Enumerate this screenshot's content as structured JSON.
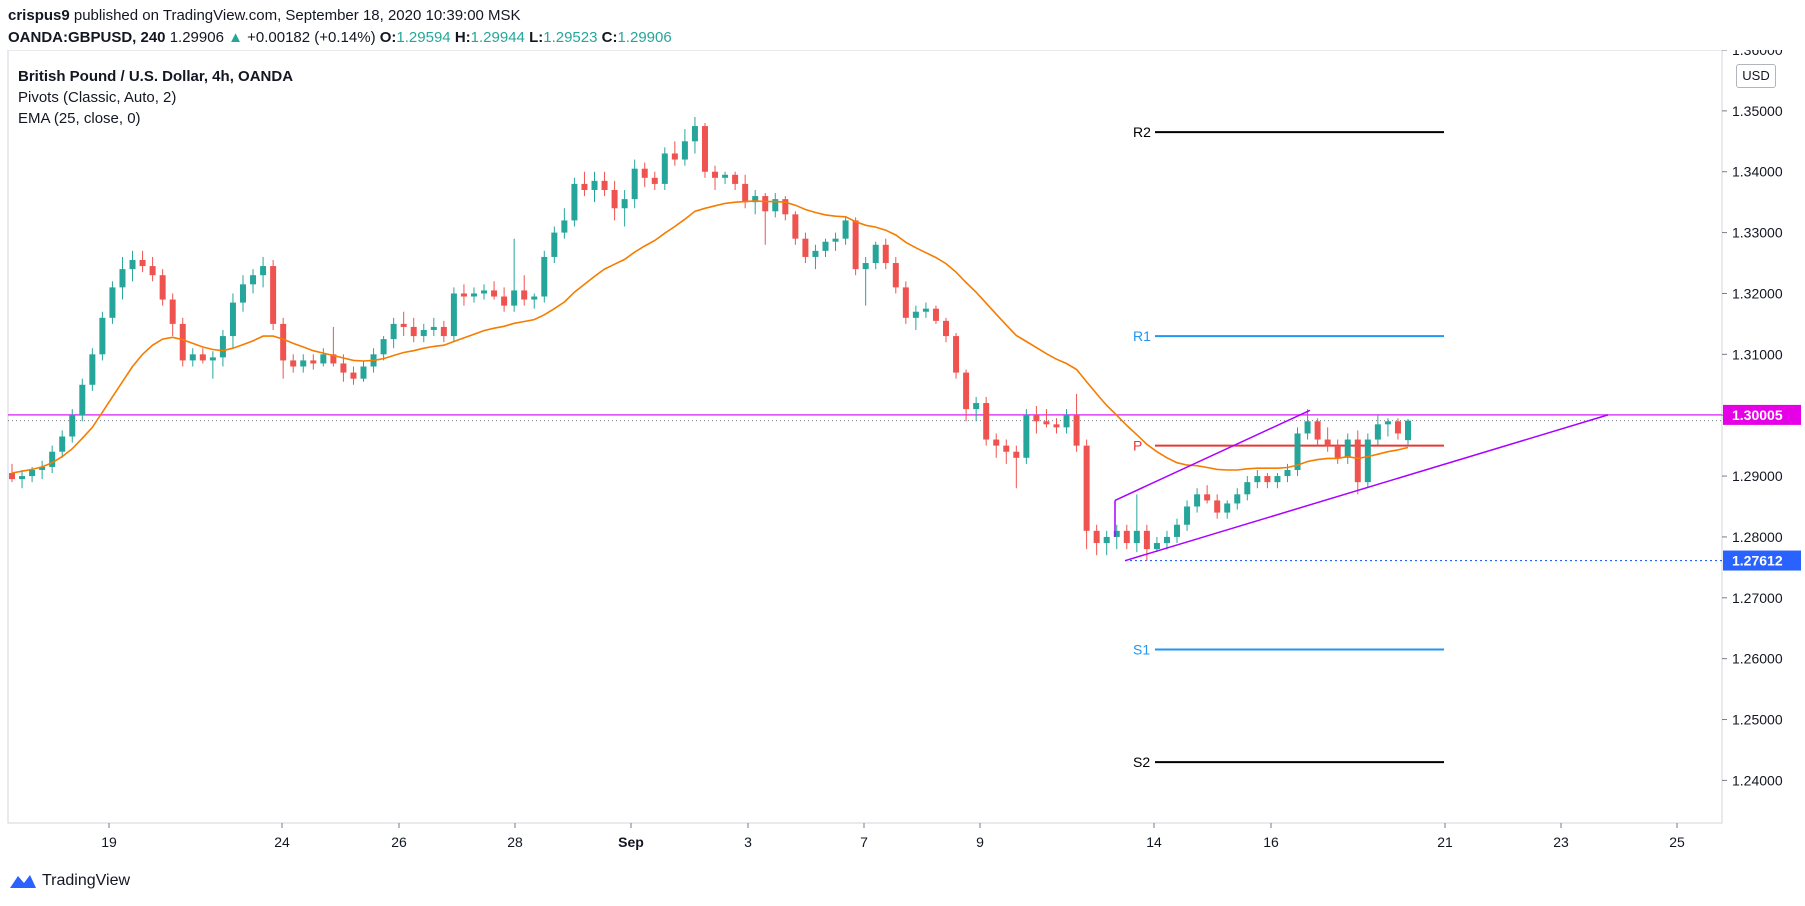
{
  "header": {
    "author": "crispus9",
    "published": "published on TradingView.com, September 18, 2020 10:39:00 MSK"
  },
  "symbol_line": {
    "symbol": "OANDA:GBPUSD, 240",
    "last": "1.29906",
    "arrow": "▲",
    "change": "+0.00182 (+0.14%)",
    "o_label": "O:",
    "o": "1.29594",
    "h_label": "H:",
    "h": "1.29944",
    "l_label": "L:",
    "l": "1.29523",
    "c_label": "C:",
    "c": "1.29906"
  },
  "legend": {
    "title": "British Pound / U.S. Dollar, 4h, OANDA",
    "pivots": "Pivots (Classic, Auto, 2)",
    "ema": "EMA (25, close, 0)"
  },
  "currency_button": "USD",
  "footer": {
    "brand": "TradingView"
  },
  "colors": {
    "up": "#26a69a",
    "down": "#ef5350",
    "ema": "#f57c00",
    "pivot_p": "#e53935",
    "pivot_r1s1": "#2196f3",
    "pivot_r2s2": "#000000",
    "wedge": "#aa00ff",
    "horizontal": "#e040fb",
    "low_label": "#2962ff"
  },
  "chart_data": {
    "type": "candlestick",
    "y_ticks": [
      "1.36000",
      "1.35000",
      "1.34000",
      "1.33000",
      "1.32000",
      "1.31000",
      "1.30000",
      "1.29000",
      "1.28000",
      "1.27000",
      "1.26000",
      "1.25000",
      "1.24000"
    ],
    "ylim": [
      1.233,
      1.36
    ],
    "x_ticks": [
      "19",
      "24",
      "26",
      "28",
      "Sep",
      "3",
      "7",
      "9",
      "14",
      "16",
      "21",
      "23",
      "25"
    ],
    "price_labels": {
      "horizontal": "1.30005",
      "low": "1.27612"
    },
    "pivots": {
      "R2": 1.3465,
      "R1": 1.313,
      "P": 1.295,
      "S1": 1.2615,
      "S2": 1.243,
      "labels": [
        "R2",
        "R1",
        "P",
        "S1",
        "S2"
      ]
    },
    "candles_ohlc": [
      [
        1.2905,
        1.292,
        1.289,
        1.2895
      ],
      [
        1.2895,
        1.291,
        1.288,
        1.29
      ],
      [
        1.29,
        1.2915,
        1.289,
        1.291
      ],
      [
        1.291,
        1.2925,
        1.2895,
        1.2915
      ],
      [
        1.2915,
        1.295,
        1.2905,
        1.294
      ],
      [
        1.294,
        1.2975,
        1.293,
        1.2965
      ],
      [
        1.2965,
        1.301,
        1.2955,
        1.3
      ],
      [
        1.3,
        1.306,
        1.299,
        1.305
      ],
      [
        1.305,
        1.311,
        1.304,
        1.31
      ],
      [
        1.31,
        1.317,
        1.309,
        1.316
      ],
      [
        1.316,
        1.322,
        1.315,
        1.321
      ],
      [
        1.321,
        1.326,
        1.319,
        1.324
      ],
      [
        1.324,
        1.327,
        1.322,
        1.3255
      ],
      [
        1.3255,
        1.327,
        1.3235,
        1.3245
      ],
      [
        1.3245,
        1.326,
        1.322,
        1.323
      ],
      [
        1.323,
        1.324,
        1.318,
        1.319
      ],
      [
        1.319,
        1.32,
        1.313,
        1.315
      ],
      [
        1.315,
        1.316,
        1.308,
        1.309
      ],
      [
        1.309,
        1.311,
        1.308,
        1.31
      ],
      [
        1.31,
        1.311,
        1.3085,
        1.309
      ],
      [
        1.309,
        1.3105,
        1.306,
        1.3095
      ],
      [
        1.3095,
        1.314,
        1.308,
        1.313
      ],
      [
        1.313,
        1.32,
        1.311,
        1.3185
      ],
      [
        1.3185,
        1.323,
        1.317,
        1.3215
      ],
      [
        1.3215,
        1.324,
        1.32,
        1.323
      ],
      [
        1.323,
        1.326,
        1.321,
        1.3245
      ],
      [
        1.3245,
        1.3255,
        1.314,
        1.315
      ],
      [
        1.315,
        1.316,
        1.306,
        1.309
      ],
      [
        1.309,
        1.31,
        1.307,
        1.308
      ],
      [
        1.308,
        1.31,
        1.307,
        1.309
      ],
      [
        1.309,
        1.31,
        1.3075,
        1.3085
      ],
      [
        1.3085,
        1.311,
        1.308,
        1.31
      ],
      [
        1.31,
        1.3145,
        1.308,
        1.3085
      ],
      [
        1.3085,
        1.31,
        1.3055,
        1.307
      ],
      [
        1.307,
        1.308,
        1.305,
        1.306
      ],
      [
        1.306,
        1.309,
        1.3055,
        1.308
      ],
      [
        1.308,
        1.311,
        1.307,
        1.31
      ],
      [
        1.31,
        1.313,
        1.309,
        1.3125
      ],
      [
        1.3125,
        1.316,
        1.311,
        1.315
      ],
      [
        1.315,
        1.317,
        1.313,
        1.3145
      ],
      [
        1.3145,
        1.316,
        1.312,
        1.313
      ],
      [
        1.313,
        1.315,
        1.312,
        1.314
      ],
      [
        1.314,
        1.316,
        1.313,
        1.3145
      ],
      [
        1.3145,
        1.3155,
        1.312,
        1.313
      ],
      [
        1.313,
        1.321,
        1.312,
        1.32
      ],
      [
        1.32,
        1.3215,
        1.318,
        1.3195
      ],
      [
        1.3195,
        1.321,
        1.3185,
        1.32
      ],
      [
        1.32,
        1.3215,
        1.319,
        1.3205
      ],
      [
        1.3205,
        1.322,
        1.319,
        1.3195
      ],
      [
        1.3195,
        1.321,
        1.317,
        1.318
      ],
      [
        1.318,
        1.329,
        1.317,
        1.3205
      ],
      [
        1.3205,
        1.323,
        1.318,
        1.319
      ],
      [
        1.319,
        1.32,
        1.3175,
        1.3195
      ],
      [
        1.3195,
        1.327,
        1.3185,
        1.326
      ],
      [
        1.326,
        1.331,
        1.325,
        1.33
      ],
      [
        1.33,
        1.334,
        1.329,
        1.332
      ],
      [
        1.332,
        1.339,
        1.331,
        1.338
      ],
      [
        1.338,
        1.34,
        1.336,
        1.337
      ],
      [
        1.337,
        1.34,
        1.335,
        1.3385
      ],
      [
        1.3385,
        1.34,
        1.336,
        1.337
      ],
      [
        1.337,
        1.3385,
        1.332,
        1.334
      ],
      [
        1.334,
        1.337,
        1.331,
        1.3355
      ],
      [
        1.3355,
        1.342,
        1.334,
        1.3405
      ],
      [
        1.3405,
        1.3415,
        1.3375,
        1.339
      ],
      [
        1.339,
        1.34,
        1.337,
        1.338
      ],
      [
        1.338,
        1.344,
        1.337,
        1.343
      ],
      [
        1.343,
        1.345,
        1.341,
        1.342
      ],
      [
        1.342,
        1.347,
        1.341,
        1.345
      ],
      [
        1.345,
        1.349,
        1.343,
        1.3475
      ],
      [
        1.3475,
        1.348,
        1.339,
        1.34
      ],
      [
        1.34,
        1.341,
        1.337,
        1.339
      ],
      [
        1.339,
        1.34,
        1.338,
        1.3395
      ],
      [
        1.3395,
        1.34,
        1.337,
        1.338
      ],
      [
        1.338,
        1.3395,
        1.334,
        1.335
      ],
      [
        1.335,
        1.337,
        1.333,
        1.336
      ],
      [
        1.336,
        1.3365,
        1.328,
        1.3335
      ],
      [
        1.3335,
        1.3365,
        1.3325,
        1.3355
      ],
      [
        1.3355,
        1.336,
        1.332,
        1.333
      ],
      [
        1.333,
        1.3335,
        1.328,
        1.329
      ],
      [
        1.329,
        1.33,
        1.325,
        1.326
      ],
      [
        1.326,
        1.328,
        1.324,
        1.327
      ],
      [
        1.327,
        1.329,
        1.326,
        1.3285
      ],
      [
        1.3285,
        1.33,
        1.327,
        1.329
      ],
      [
        1.329,
        1.3325,
        1.328,
        1.332
      ],
      [
        1.332,
        1.3325,
        1.323,
        1.324
      ],
      [
        1.324,
        1.326,
        1.318,
        1.325
      ],
      [
        1.325,
        1.3285,
        1.324,
        1.328
      ],
      [
        1.328,
        1.329,
        1.324,
        1.325
      ],
      [
        1.325,
        1.326,
        1.32,
        1.321
      ],
      [
        1.321,
        1.322,
        1.315,
        1.316
      ],
      [
        1.316,
        1.318,
        1.314,
        1.317
      ],
      [
        1.317,
        1.3185,
        1.316,
        1.3175
      ],
      [
        1.3175,
        1.318,
        1.315,
        1.3155
      ],
      [
        1.3155,
        1.316,
        1.312,
        1.313
      ],
      [
        1.313,
        1.3135,
        1.306,
        1.307
      ],
      [
        1.307,
        1.3075,
        1.299,
        1.301
      ],
      [
        1.301,
        1.303,
        1.299,
        1.302
      ],
      [
        1.302,
        1.303,
        1.295,
        1.296
      ],
      [
        1.296,
        1.297,
        1.293,
        1.295
      ],
      [
        1.295,
        1.296,
        1.292,
        1.294
      ],
      [
        1.294,
        1.295,
        1.288,
        1.293
      ],
      [
        1.293,
        1.301,
        1.292,
        1.3
      ],
      [
        1.3,
        1.3015,
        1.297,
        1.299
      ],
      [
        1.299,
        1.301,
        1.298,
        1.2985
      ],
      [
        1.2985,
        1.2995,
        1.297,
        1.298
      ],
      [
        1.298,
        1.301,
        1.297,
        1.3
      ],
      [
        1.3,
        1.3035,
        1.294,
        1.295
      ],
      [
        1.295,
        1.296,
        1.278,
        1.281
      ],
      [
        1.281,
        1.282,
        1.277,
        1.279
      ],
      [
        1.279,
        1.281,
        1.277,
        1.28
      ],
      [
        1.28,
        1.282,
        1.278,
        1.281
      ],
      [
        1.281,
        1.282,
        1.278,
        1.279
      ],
      [
        1.279,
        1.287,
        1.2775,
        1.281
      ],
      [
        1.281,
        1.282,
        1.2761,
        1.278
      ],
      [
        1.278,
        1.28,
        1.2775,
        1.279
      ],
      [
        1.279,
        1.281,
        1.278,
        1.28
      ],
      [
        1.28,
        1.283,
        1.279,
        1.282
      ],
      [
        1.282,
        1.286,
        1.281,
        1.285
      ],
      [
        1.285,
        1.288,
        1.284,
        1.287
      ],
      [
        1.287,
        1.2885,
        1.2855,
        1.286
      ],
      [
        1.286,
        1.287,
        1.283,
        1.284
      ],
      [
        1.284,
        1.286,
        1.283,
        1.2855
      ],
      [
        1.2855,
        1.288,
        1.2845,
        1.287
      ],
      [
        1.287,
        1.29,
        1.286,
        1.289
      ],
      [
        1.289,
        1.291,
        1.288,
        1.29
      ],
      [
        1.29,
        1.2905,
        1.288,
        1.289
      ],
      [
        1.289,
        1.2905,
        1.288,
        1.29
      ],
      [
        1.29,
        1.292,
        1.289,
        1.291
      ],
      [
        1.291,
        1.298,
        1.29,
        1.297
      ],
      [
        1.297,
        1.301,
        1.296,
        1.299
      ],
      [
        1.299,
        1.2995,
        1.295,
        1.296
      ],
      [
        1.296,
        1.298,
        1.294,
        1.295
      ],
      [
        1.295,
        1.296,
        1.292,
        1.293
      ],
      [
        1.293,
        1.297,
        1.292,
        1.296
      ],
      [
        1.296,
        1.2975,
        1.287,
        1.289
      ],
      [
        1.289,
        1.297,
        1.288,
        1.296
      ],
      [
        1.296,
        1.3,
        1.295,
        1.2985
      ],
      [
        1.2985,
        1.2995,
        1.2965,
        1.299
      ],
      [
        1.299,
        1.2995,
        1.296,
        1.297
      ],
      [
        1.2959,
        1.2994,
        1.2952,
        1.2991
      ]
    ],
    "ema_25": [
      1.2905,
      1.2908,
      1.2911,
      1.2915,
      1.2922,
      1.2932,
      1.2945,
      1.2962,
      1.298,
      1.3005,
      1.303,
      1.3055,
      1.308,
      1.31,
      1.3115,
      1.3125,
      1.3128,
      1.3124,
      1.3118,
      1.3112,
      1.3108,
      1.3106,
      1.311,
      1.3116,
      1.3122,
      1.313,
      1.313,
      1.3125,
      1.3118,
      1.3112,
      1.3106,
      1.3102,
      1.3098,
      1.3094,
      1.309,
      1.3089,
      1.309,
      1.3093,
      1.3098,
      1.3103,
      1.3106,
      1.311,
      1.3113,
      1.3115,
      1.3121,
      1.3127,
      1.3133,
      1.3139,
      1.3143,
      1.3146,
      1.3151,
      1.3154,
      1.3157,
      1.3165,
      1.3175,
      1.3186,
      1.3202,
      1.3215,
      1.3228,
      1.324,
      1.3248,
      1.3256,
      1.3268,
      1.3278,
      1.3287,
      1.3299,
      1.331,
      1.3322,
      1.3335,
      1.334,
      1.3344,
      1.3348,
      1.335,
      1.3351,
      1.3352,
      1.3351,
      1.3351,
      1.335,
      1.3345,
      1.3338,
      1.3333,
      1.3329,
      1.3327,
      1.3326,
      1.3318,
      1.3312,
      1.3309,
      1.3304,
      1.3296,
      1.3284,
      1.3275,
      1.3267,
      1.3259,
      1.3249,
      1.3235,
      1.3218,
      1.3202,
      1.3184,
      1.3166,
      1.3148,
      1.3131,
      1.3121,
      1.3111,
      1.3101,
      1.3092,
      1.3085,
      1.3075,
      1.3055,
      1.3035,
      1.3016,
      1.3,
      1.2983,
      1.2968,
      1.2952,
      1.294,
      1.293,
      1.2922,
      1.2918,
      1.2917,
      1.2914,
      1.2911,
      1.291,
      1.291,
      1.2912,
      1.2913,
      1.2913,
      1.2913,
      1.2914,
      1.2918,
      1.2924,
      1.2927,
      1.2929,
      1.2929,
      1.2932,
      1.2929,
      1.2932,
      1.2936,
      1.294,
      1.2943,
      1.2947
    ]
  }
}
